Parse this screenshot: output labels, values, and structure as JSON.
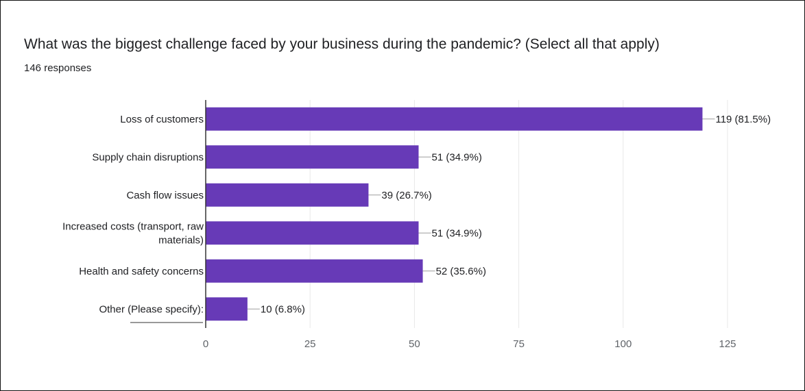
{
  "question": {
    "title": "What was the biggest challenge faced by your business during the pandemic? (Select all that apply)",
    "responses": "146 responses"
  },
  "colors": {
    "bar": "#673ab7",
    "grid": "#e8e8e8",
    "axis": "#333333"
  },
  "chart_data": {
    "type": "bar",
    "orientation": "horizontal",
    "title": "What was the biggest challenge faced by your business during the pandemic? (Select all that apply)",
    "categories": [
      [
        "Loss of customers"
      ],
      [
        "Supply chain disruptions"
      ],
      [
        "Cash flow issues"
      ],
      [
        "Increased costs (transport, raw",
        "materials)"
      ],
      [
        "Health and safety concerns"
      ],
      [
        "Other (Please specify):"
      ]
    ],
    "values": [
      119,
      51,
      39,
      51,
      52,
      10
    ],
    "value_labels": [
      "119 (81.5%)",
      "51 (34.9%)",
      "39 (26.7%)",
      "51 (34.9%)",
      "52 (35.6%)",
      "10 (6.8%)"
    ],
    "xlim": [
      0,
      125
    ],
    "xticks": [
      0,
      25,
      50,
      75,
      100,
      125
    ],
    "grid": true,
    "legend": "none"
  }
}
